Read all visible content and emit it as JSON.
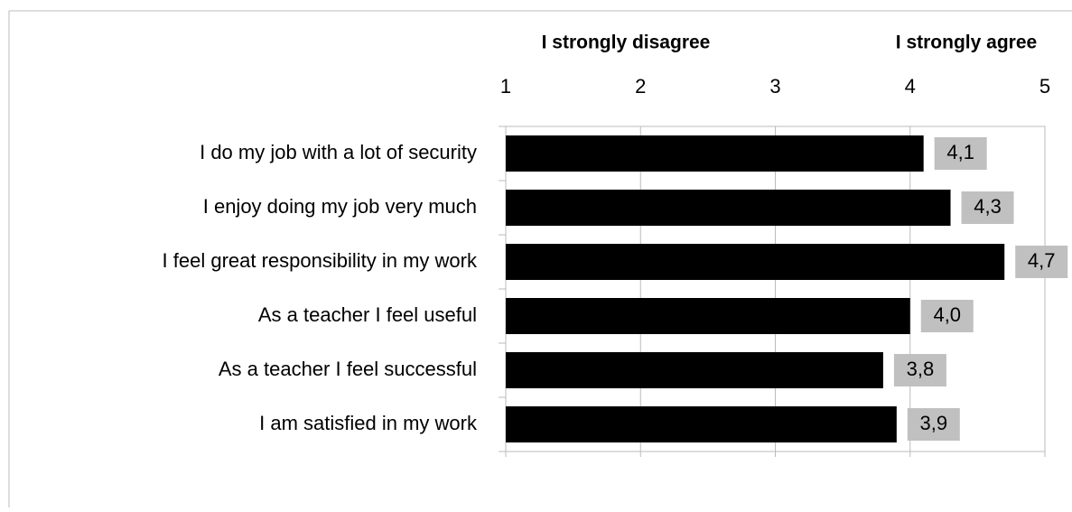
{
  "chart_data": {
    "type": "barh",
    "annotations": [
      "I strongly disagree",
      "I strongly agree"
    ],
    "categories": [
      "I do my job with a lot of security",
      "I enjoy doing  my job very much",
      "I feel great responsibility in my work",
      "As a teacher I feel useful",
      "As a teacher I feel successful",
      "I am satisfied in my work"
    ],
    "values": [
      4.1,
      4.3,
      4.7,
      4.0,
      3.8,
      3.9
    ],
    "value_labels": [
      "4,1",
      "4,3",
      "4,7",
      "4,0",
      "3,8",
      "3,9"
    ],
    "color": "#000000",
    "label_color": "#c0c0c0",
    "xlim": [
      1,
      5
    ],
    "xticks": [
      1,
      2,
      3,
      4,
      5
    ],
    "grid": true
  }
}
